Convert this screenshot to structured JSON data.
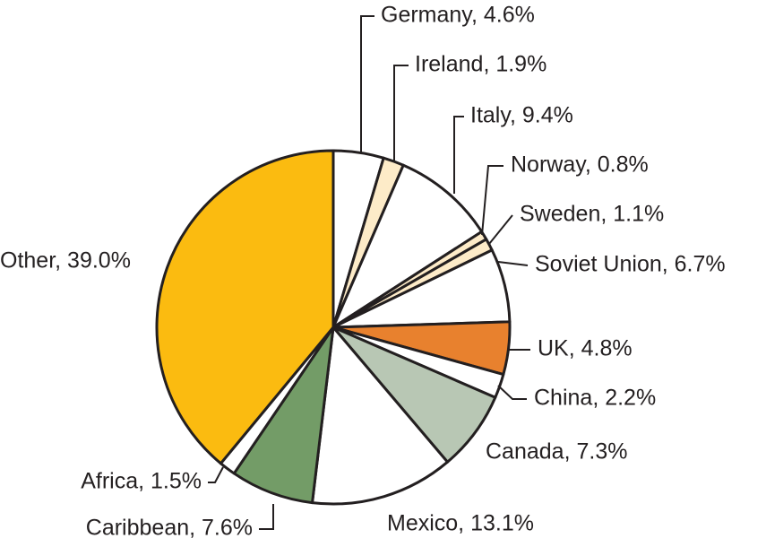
{
  "chart_data": {
    "type": "pie",
    "labels": [
      "Germany, 4.6%",
      "Ireland, 1.9%",
      "Italy, 9.4%",
      "Norway, 0.8%",
      "Sweden, 1.1%",
      "Soviet Union, 6.7%",
      "UK, 4.8%",
      "China, 2.2%",
      "Canada, 7.3%",
      "Mexico, 13.1%",
      "Caribbean, 7.6%",
      "Africa, 1.5%",
      "Other, 39.0%"
    ],
    "values": [
      4.6,
      1.9,
      9.4,
      0.8,
      1.1,
      6.7,
      4.8,
      2.2,
      7.3,
      13.1,
      7.6,
      1.5,
      39.0
    ],
    "colors": [
      "#ffffff",
      "#fdebc8",
      "#ffffff",
      "#fdebc8",
      "#fdebc8",
      "#ffffff",
      "#e8812e",
      "#ffffff",
      "#b8c7b4",
      "#ffffff",
      "#739c67",
      "#ffffff",
      "#fbbb10"
    ]
  }
}
